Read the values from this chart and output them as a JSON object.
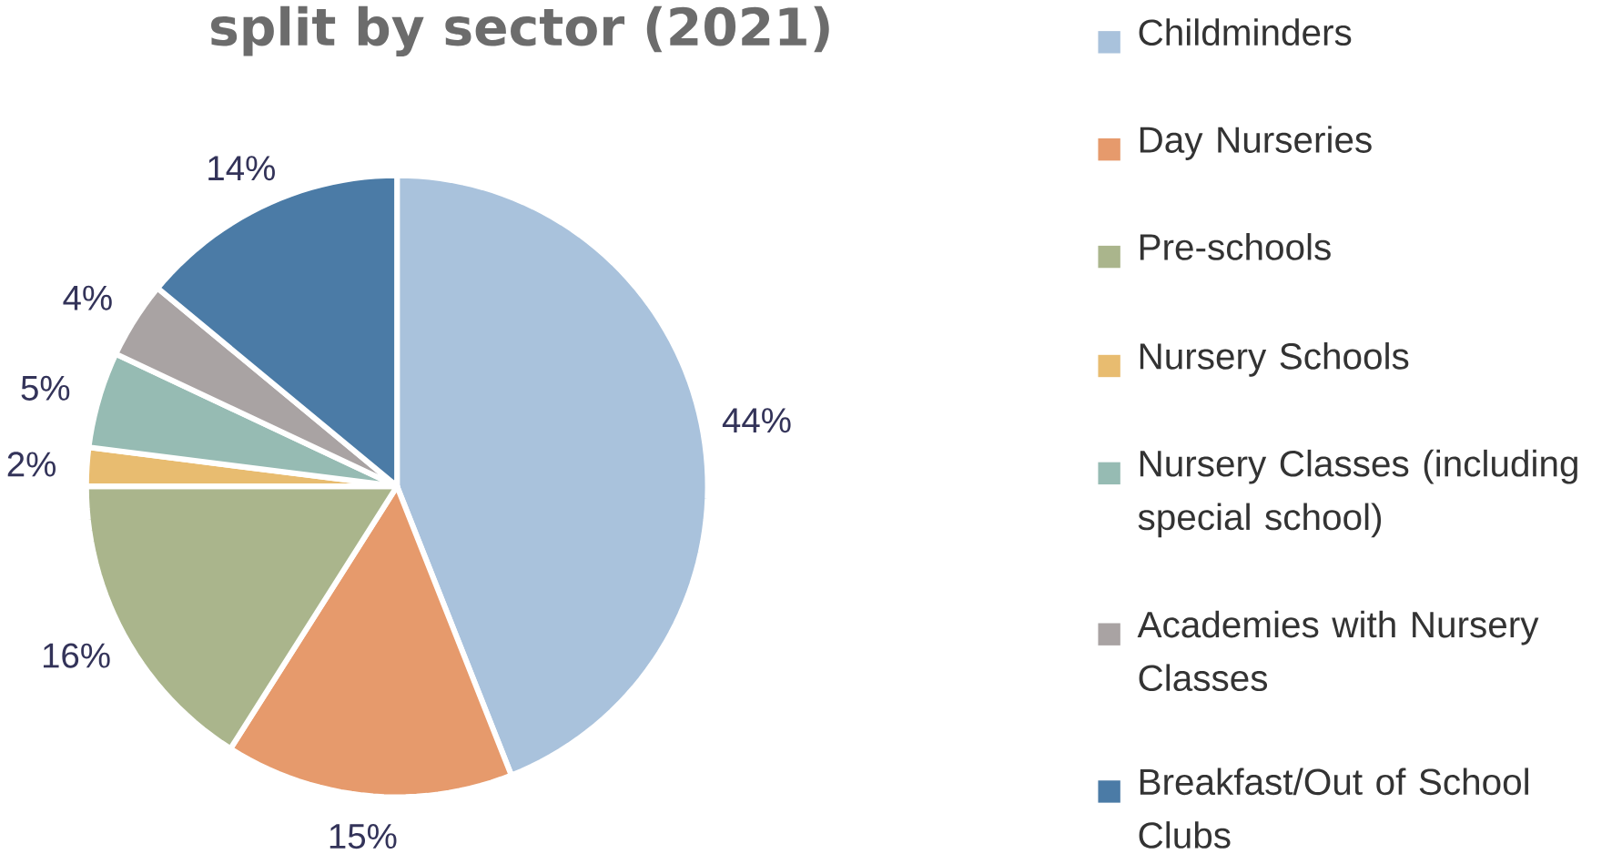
{
  "chart_data": {
    "type": "pie",
    "title": "split by sector (2021)",
    "categories": [
      "Childminders",
      "Day Nurseries",
      "Pre-schools",
      "Nursery Schools",
      "Nursery Classes (including special school)",
      "Academies with Nursery Classes",
      "Breakfast/Out of School Clubs"
    ],
    "values": [
      44,
      15,
      16,
      2,
      5,
      4,
      14
    ],
    "value_labels": [
      "44%",
      "15%",
      "16%",
      "2%",
      "5%",
      "4%",
      "14%"
    ],
    "colors": [
      "#a9c2dc",
      "#e69a6c",
      "#aab58c",
      "#e8bc70",
      "#96bbb3",
      "#a9a3a3",
      "#4b7ba6"
    ],
    "legend": "right"
  }
}
